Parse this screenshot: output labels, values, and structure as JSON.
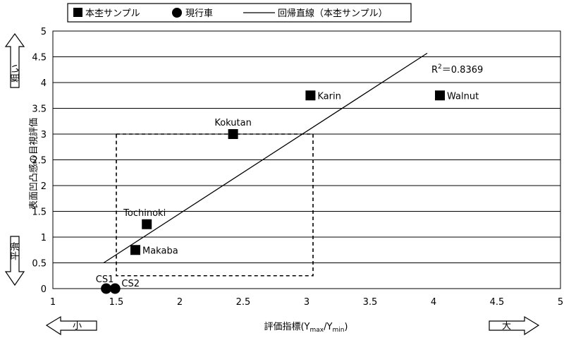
{
  "legend": {
    "sample_label": "本杢サンプル",
    "current_label": "現行車",
    "line_label": "回帰直線（本杢サンプル）"
  },
  "axes": {
    "x_title": "評価指標(Y",
    "x_sub_max": "max",
    "x_mid": "/Y",
    "x_sub_min": "min",
    "x_end": ")",
    "y_title": "表面凹凸感の目視評価",
    "y_top_tag": "粗い",
    "y_bottom_tag": "平滑",
    "x_left_tag": "小",
    "x_right_tag": "大"
  },
  "r2_label": "R",
  "r2_sup": "2",
  "r2_value": "＝0.8369",
  "chart_data": {
    "type": "scatter",
    "xlim": [
      1,
      5
    ],
    "ylim": [
      0,
      5
    ],
    "x_ticks": [
      "1",
      "1.5",
      "2",
      "2.5",
      "3",
      "3.5",
      "4",
      "4.5",
      "5"
    ],
    "y_ticks": [
      "0",
      "0.5",
      "1",
      "1.5",
      "2",
      "2.5",
      "3",
      "3.5",
      "4",
      "4.5",
      "5"
    ],
    "grid": "horizontal",
    "series": [
      {
        "name": "本杢サンプル",
        "marker": "square",
        "points": [
          {
            "label": "Walnut",
            "x": 4.05,
            "y": 3.75
          },
          {
            "label": "Karin",
            "x": 3.03,
            "y": 3.75
          },
          {
            "label": "Kokutan",
            "x": 2.42,
            "y": 3.0
          },
          {
            "label": "Tochinoki",
            "x": 1.74,
            "y": 1.25
          },
          {
            "label": "Makaba",
            "x": 1.65,
            "y": 0.75
          }
        ]
      },
      {
        "name": "現行車",
        "marker": "circle",
        "points": [
          {
            "label": "CS1",
            "x": 1.42,
            "y": 0
          },
          {
            "label": "CS2",
            "x": 1.49,
            "y": 0
          }
        ]
      }
    ],
    "regression_line": {
      "name": "回帰直線（本杢サンプル）",
      "x1": 1.4,
      "y1": 0.5,
      "x2": 3.95,
      "y2": 4.57,
      "r2": 0.8369
    },
    "dashed_region": {
      "x1": 1.5,
      "x2": 3.05,
      "y1": 0.25,
      "y2": 3.0
    }
  }
}
